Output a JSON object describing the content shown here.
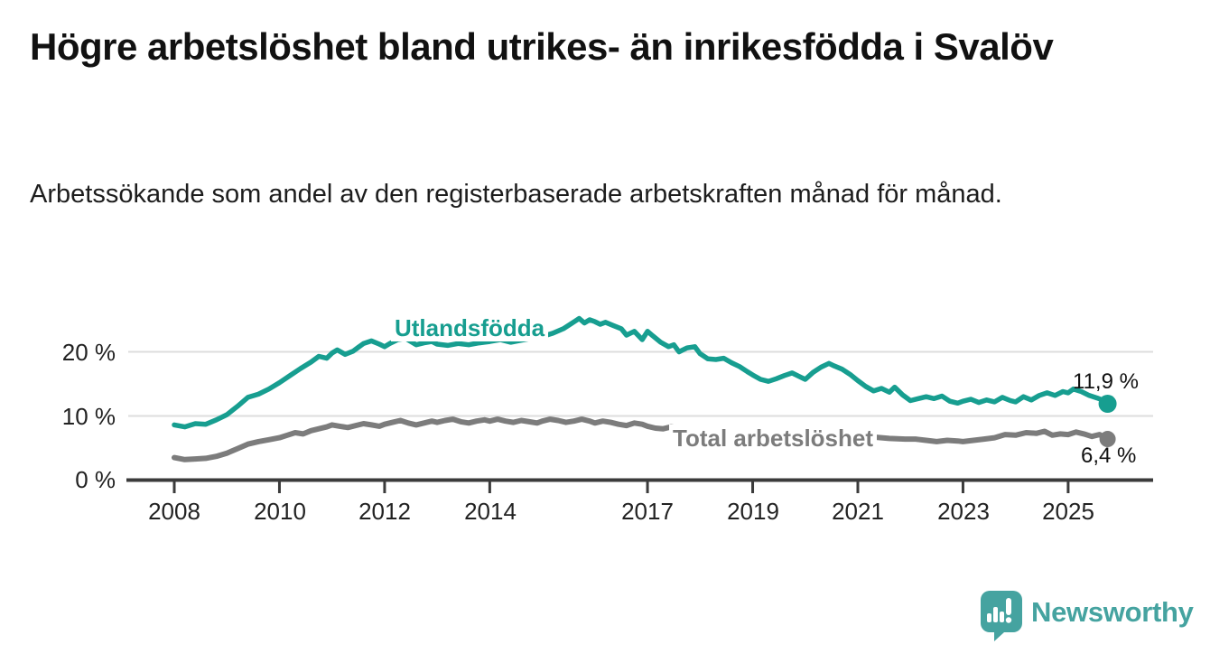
{
  "header": {
    "title": "Högre arbetslöshet bland utrikes- än inrikesfödda i Svalöv",
    "subtitle": "Arbetssökande som andel av den registerbaserade arbetskraften månad för månad."
  },
  "chart_data": {
    "type": "line",
    "title": "Högre arbetslöshet bland utrikes- än inrikesfödda i Svalöv",
    "subtitle": "Arbetssökande som andel av den registerbaserade arbetskraften månad för månad.",
    "unit": "%",
    "xlabel": "",
    "ylabel": "",
    "xlim": [
      2007.8,
      2026.4
    ],
    "ylim": [
      0,
      27
    ],
    "grid": "horizontal",
    "legend_position": "inline-labels",
    "y_ticks": [
      "20 %",
      "10 %",
      "0 %"
    ],
    "y_tick_values": [
      20,
      10,
      0
    ],
    "x_ticks": [
      "2008",
      "2010",
      "2012",
      "2014",
      "2017",
      "2019",
      "2021",
      "2023",
      "2025"
    ],
    "x_tick_years": [
      2008,
      2010,
      2012,
      2014,
      2017,
      2019,
      2021,
      2023,
      2025
    ],
    "series": [
      {
        "name": "Utlandsfödda",
        "color": "#179E90",
        "end_label": "11,9 %",
        "end_value": 11.9,
        "points": [
          [
            2008.0,
            8.6
          ],
          [
            2008.2,
            8.3
          ],
          [
            2008.4,
            8.8
          ],
          [
            2008.6,
            8.7
          ],
          [
            2008.8,
            9.4
          ],
          [
            2009.0,
            10.2
          ],
          [
            2009.2,
            11.5
          ],
          [
            2009.4,
            12.9
          ],
          [
            2009.6,
            13.4
          ],
          [
            2009.8,
            14.2
          ],
          [
            2010.0,
            15.2
          ],
          [
            2010.2,
            16.3
          ],
          [
            2010.4,
            17.4
          ],
          [
            2010.6,
            18.4
          ],
          [
            2010.75,
            19.3
          ],
          [
            2010.9,
            19.0
          ],
          [
            2011.0,
            19.8
          ],
          [
            2011.1,
            20.3
          ],
          [
            2011.25,
            19.6
          ],
          [
            2011.4,
            20.1
          ],
          [
            2011.5,
            20.7
          ],
          [
            2011.6,
            21.3
          ],
          [
            2011.75,
            21.7
          ],
          [
            2011.9,
            21.2
          ],
          [
            2012.0,
            20.8
          ],
          [
            2012.1,
            21.3
          ],
          [
            2012.25,
            21.9
          ],
          [
            2012.4,
            22.1
          ],
          [
            2012.5,
            21.6
          ],
          [
            2012.6,
            21.1
          ],
          [
            2012.75,
            21.4
          ],
          [
            2012.9,
            21.6
          ],
          [
            2013.0,
            21.2
          ],
          [
            2013.2,
            21.0
          ],
          [
            2013.4,
            21.3
          ],
          [
            2013.6,
            21.1
          ],
          [
            2013.8,
            21.4
          ],
          [
            2014.0,
            21.6
          ],
          [
            2014.2,
            21.9
          ],
          [
            2014.4,
            21.5
          ],
          [
            2014.6,
            21.8
          ],
          [
            2014.8,
            22.1
          ],
          [
            2015.0,
            22.4
          ],
          [
            2015.2,
            22.9
          ],
          [
            2015.4,
            23.6
          ],
          [
            2015.55,
            24.4
          ],
          [
            2015.7,
            25.2
          ],
          [
            2015.8,
            24.5
          ],
          [
            2015.9,
            25.0
          ],
          [
            2016.0,
            24.7
          ],
          [
            2016.1,
            24.3
          ],
          [
            2016.2,
            24.6
          ],
          [
            2016.35,
            24.1
          ],
          [
            2016.5,
            23.6
          ],
          [
            2016.6,
            22.6
          ],
          [
            2016.75,
            23.2
          ],
          [
            2016.9,
            21.9
          ],
          [
            2017.0,
            23.2
          ],
          [
            2017.1,
            22.5
          ],
          [
            2017.25,
            21.5
          ],
          [
            2017.4,
            20.8
          ],
          [
            2017.5,
            21.1
          ],
          [
            2017.6,
            20.0
          ],
          [
            2017.75,
            20.6
          ],
          [
            2017.9,
            20.8
          ],
          [
            2018.0,
            19.7
          ],
          [
            2018.15,
            18.9
          ],
          [
            2018.3,
            18.8
          ],
          [
            2018.45,
            19.0
          ],
          [
            2018.6,
            18.3
          ],
          [
            2018.75,
            17.7
          ],
          [
            2018.9,
            16.9
          ],
          [
            2019.0,
            16.4
          ],
          [
            2019.15,
            15.7
          ],
          [
            2019.3,
            15.4
          ],
          [
            2019.45,
            15.8
          ],
          [
            2019.6,
            16.3
          ],
          [
            2019.75,
            16.7
          ],
          [
            2019.9,
            16.1
          ],
          [
            2020.0,
            15.7
          ],
          [
            2020.15,
            16.8
          ],
          [
            2020.3,
            17.6
          ],
          [
            2020.45,
            18.2
          ],
          [
            2020.55,
            17.8
          ],
          [
            2020.7,
            17.3
          ],
          [
            2020.85,
            16.5
          ],
          [
            2021.0,
            15.5
          ],
          [
            2021.15,
            14.6
          ],
          [
            2021.3,
            13.9
          ],
          [
            2021.45,
            14.3
          ],
          [
            2021.6,
            13.7
          ],
          [
            2021.7,
            14.5
          ],
          [
            2021.85,
            13.3
          ],
          [
            2022.0,
            12.4
          ],
          [
            2022.15,
            12.7
          ],
          [
            2022.3,
            13.0
          ],
          [
            2022.45,
            12.7
          ],
          [
            2022.6,
            13.1
          ],
          [
            2022.75,
            12.3
          ],
          [
            2022.9,
            12.0
          ],
          [
            2023.0,
            12.3
          ],
          [
            2023.15,
            12.6
          ],
          [
            2023.3,
            12.1
          ],
          [
            2023.45,
            12.5
          ],
          [
            2023.6,
            12.2
          ],
          [
            2023.75,
            12.9
          ],
          [
            2023.9,
            12.4
          ],
          [
            2024.0,
            12.2
          ],
          [
            2024.15,
            13.0
          ],
          [
            2024.3,
            12.5
          ],
          [
            2024.45,
            13.2
          ],
          [
            2024.6,
            13.6
          ],
          [
            2024.75,
            13.2
          ],
          [
            2024.9,
            13.8
          ],
          [
            2025.0,
            13.6
          ],
          [
            2025.1,
            14.2
          ],
          [
            2025.25,
            13.8
          ],
          [
            2025.4,
            13.2
          ],
          [
            2025.55,
            12.8
          ],
          [
            2025.65,
            12.5
          ],
          [
            2025.75,
            11.9
          ]
        ]
      },
      {
        "name": "Total arbetslöshet",
        "color": "#7C7C7C",
        "end_label": "6,4 %",
        "end_value": 6.4,
        "points": [
          [
            2008.0,
            3.5
          ],
          [
            2008.2,
            3.2
          ],
          [
            2008.4,
            3.3
          ],
          [
            2008.6,
            3.4
          ],
          [
            2008.8,
            3.7
          ],
          [
            2009.0,
            4.2
          ],
          [
            2009.2,
            4.9
          ],
          [
            2009.4,
            5.6
          ],
          [
            2009.6,
            6.0
          ],
          [
            2009.8,
            6.3
          ],
          [
            2010.0,
            6.6
          ],
          [
            2010.15,
            7.0
          ],
          [
            2010.3,
            7.4
          ],
          [
            2010.45,
            7.2
          ],
          [
            2010.6,
            7.7
          ],
          [
            2010.75,
            8.0
          ],
          [
            2010.9,
            8.3
          ],
          [
            2011.0,
            8.6
          ],
          [
            2011.15,
            8.4
          ],
          [
            2011.3,
            8.2
          ],
          [
            2011.45,
            8.5
          ],
          [
            2011.6,
            8.8
          ],
          [
            2011.75,
            8.6
          ],
          [
            2011.9,
            8.4
          ],
          [
            2012.0,
            8.7
          ],
          [
            2012.15,
            9.0
          ],
          [
            2012.3,
            9.3
          ],
          [
            2012.45,
            8.9
          ],
          [
            2012.6,
            8.6
          ],
          [
            2012.75,
            8.9
          ],
          [
            2012.9,
            9.2
          ],
          [
            2013.0,
            9.0
          ],
          [
            2013.15,
            9.3
          ],
          [
            2013.3,
            9.5
          ],
          [
            2013.45,
            9.1
          ],
          [
            2013.6,
            8.9
          ],
          [
            2013.75,
            9.2
          ],
          [
            2013.9,
            9.4
          ],
          [
            2014.0,
            9.2
          ],
          [
            2014.15,
            9.5
          ],
          [
            2014.3,
            9.2
          ],
          [
            2014.45,
            9.0
          ],
          [
            2014.6,
            9.3
          ],
          [
            2014.75,
            9.1
          ],
          [
            2014.9,
            8.9
          ],
          [
            2015.0,
            9.2
          ],
          [
            2015.15,
            9.5
          ],
          [
            2015.3,
            9.3
          ],
          [
            2015.45,
            9.0
          ],
          [
            2015.6,
            9.2
          ],
          [
            2015.75,
            9.5
          ],
          [
            2015.9,
            9.2
          ],
          [
            2016.0,
            8.9
          ],
          [
            2016.15,
            9.2
          ],
          [
            2016.3,
            9.0
          ],
          [
            2016.45,
            8.7
          ],
          [
            2016.6,
            8.5
          ],
          [
            2016.75,
            8.9
          ],
          [
            2016.9,
            8.7
          ],
          [
            2017.0,
            8.4
          ],
          [
            2017.15,
            8.1
          ],
          [
            2017.3,
            8.0
          ],
          [
            2017.45,
            8.3
          ],
          [
            2017.6,
            8.1
          ],
          [
            2017.8,
            7.9
          ],
          [
            2018.0,
            7.8
          ],
          [
            2018.3,
            7.5
          ],
          [
            2018.6,
            7.3
          ],
          [
            2018.9,
            7.1
          ],
          [
            2019.2,
            6.9
          ],
          [
            2019.5,
            6.8
          ],
          [
            2019.8,
            6.9
          ],
          [
            2020.1,
            7.1
          ],
          [
            2020.4,
            7.3
          ],
          [
            2020.7,
            7.1
          ],
          [
            2021.0,
            6.9
          ],
          [
            2021.3,
            6.7
          ],
          [
            2021.6,
            6.5
          ],
          [
            2021.9,
            6.4
          ],
          [
            2022.1,
            6.4
          ],
          [
            2022.3,
            6.2
          ],
          [
            2022.5,
            6.0
          ],
          [
            2022.7,
            6.2
          ],
          [
            2022.9,
            6.1
          ],
          [
            2023.0,
            6.0
          ],
          [
            2023.2,
            6.2
          ],
          [
            2023.4,
            6.4
          ],
          [
            2023.6,
            6.6
          ],
          [
            2023.8,
            7.1
          ],
          [
            2024.0,
            7.0
          ],
          [
            2024.2,
            7.4
          ],
          [
            2024.4,
            7.3
          ],
          [
            2024.55,
            7.6
          ],
          [
            2024.7,
            7.0
          ],
          [
            2024.85,
            7.2
          ],
          [
            2025.0,
            7.1
          ],
          [
            2025.15,
            7.5
          ],
          [
            2025.3,
            7.2
          ],
          [
            2025.45,
            6.8
          ],
          [
            2025.6,
            7.1
          ],
          [
            2025.75,
            6.4
          ]
        ]
      }
    ]
  },
  "footer": {
    "brand": "Newsworthy",
    "brand_color": "#45A3A0"
  },
  "colors": {
    "background": "#FFFFFF",
    "title_text": "#111111",
    "axis_line": "#3B3B3B",
    "gridline": "#DDDDDD",
    "tick_text": "#222222",
    "series_foreign_born": "#179E90",
    "series_total": "#7C7C7C",
    "logo_teal": "#45A3A0"
  }
}
